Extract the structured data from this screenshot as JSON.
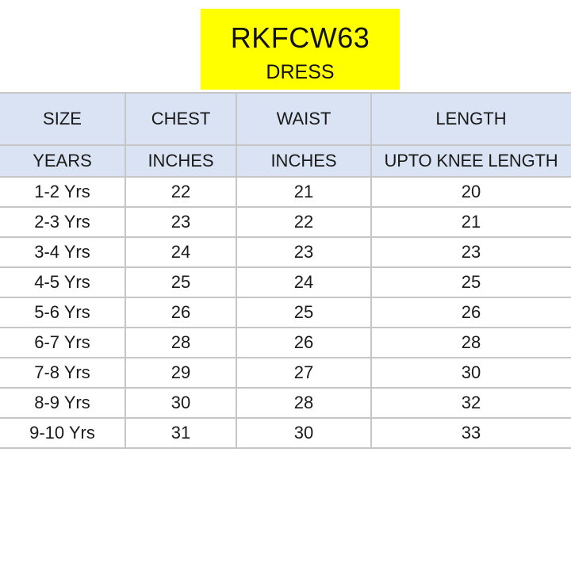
{
  "header": {
    "product_code": "RKFCW63",
    "product_type": "DRESS"
  },
  "table": {
    "columns": [
      "SIZE",
      "CHEST",
      "WAIST",
      "LENGTH"
    ],
    "units": [
      "YEARS",
      "INCHES",
      "INCHES",
      "UPTO KNEE LENGTH"
    ],
    "rows": [
      [
        "1-2 Yrs",
        "22",
        "21",
        "20"
      ],
      [
        "2-3 Yrs",
        "23",
        "22",
        "21"
      ],
      [
        "3-4 Yrs",
        "24",
        "23",
        "23"
      ],
      [
        "4-5 Yrs",
        "25",
        "24",
        "25"
      ],
      [
        "5-6 Yrs",
        "26",
        "25",
        "26"
      ],
      [
        "6-7 Yrs",
        "28",
        "26",
        "28"
      ],
      [
        "7-8 Yrs",
        "29",
        "27",
        "30"
      ],
      [
        "8-9 Yrs",
        "30",
        "28",
        "32"
      ],
      [
        "9-10 Yrs",
        "31",
        "30",
        "33"
      ]
    ]
  },
  "colors": {
    "title_background": "#ffff00",
    "header_background": "#dae3f3",
    "grid_lines": "#c6c6c6"
  }
}
